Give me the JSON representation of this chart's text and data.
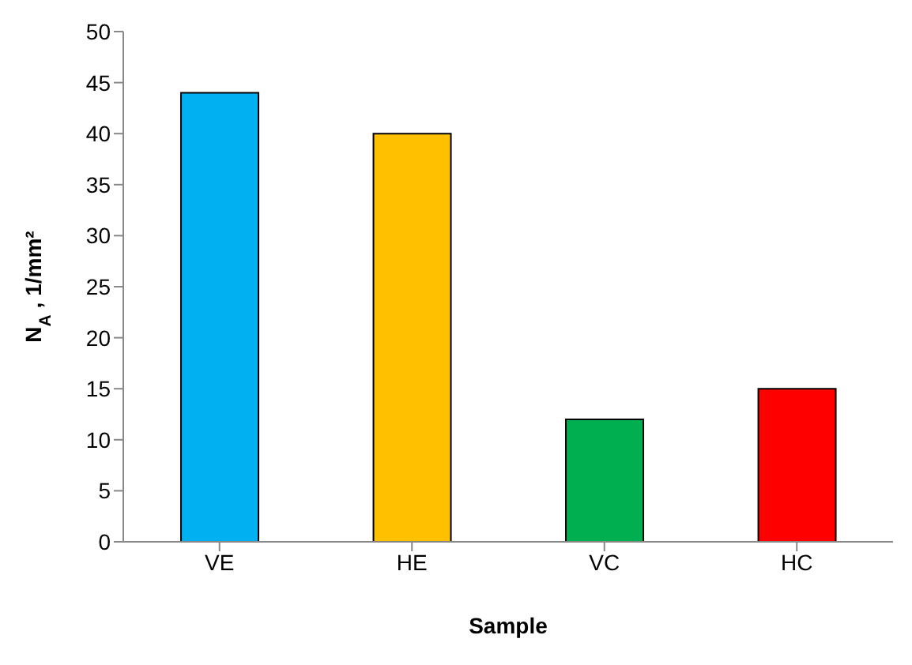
{
  "chart_data": {
    "type": "bar",
    "xlabel": "Sample",
    "ylabel": "N$_{A}$, 1/mm²",
    "categories": [
      "VE",
      "HE",
      "VC",
      "HC"
    ],
    "values": [
      44,
      40,
      12,
      15
    ],
    "colors": [
      "#00b0f0",
      "#ffc000",
      "#00b050",
      "#ff0000"
    ],
    "ylim": [
      0,
      50
    ],
    "yticks": [
      0,
      5,
      10,
      15,
      20,
      25,
      30,
      35,
      40,
      45,
      50
    ],
    "grid": false,
    "legend": false
  }
}
